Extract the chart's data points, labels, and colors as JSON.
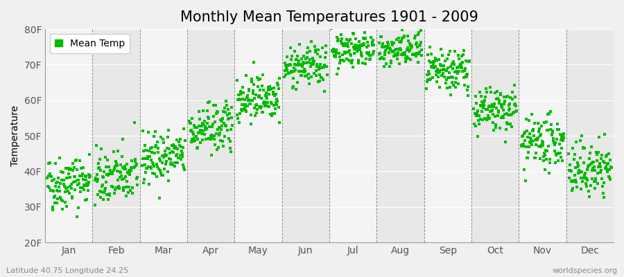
{
  "title": "Monthly Mean Temperatures 1901 - 2009",
  "ylabel": "Temperature",
  "bottom_left_text": "Latitude 40.75 Longitude 24.25",
  "bottom_right_text": "worldspecies.org",
  "legend_label": "Mean Temp",
  "months": [
    "Jan",
    "Feb",
    "Mar",
    "Apr",
    "May",
    "Jun",
    "Jul",
    "Aug",
    "Sep",
    "Oct",
    "Nov",
    "Dec"
  ],
  "month_means_F": [
    37.0,
    38.5,
    44.0,
    52.0,
    61.0,
    69.5,
    74.5,
    74.0,
    68.0,
    57.0,
    48.0,
    40.5
  ],
  "month_stds_F": [
    3.8,
    3.8,
    3.5,
    3.5,
    3.2,
    2.8,
    2.5,
    2.5,
    3.0,
    3.2,
    3.5,
    3.8
  ],
  "n_years": 109,
  "warming_trend_F_per_century": 1.5,
  "dot_color": "#00bb00",
  "dot_size": 5,
  "ylim": [
    20,
    80
  ],
  "yticks": [
    20,
    30,
    40,
    50,
    60,
    70,
    80
  ],
  "ytick_labels": [
    "20F",
    "30F",
    "40F",
    "50F",
    "60F",
    "70F",
    "80F"
  ],
  "bg_color": "#f0f0f0",
  "plot_bg_color": "#e8e8e8",
  "alt_band_color": "#f4f4f4",
  "grid_color": "#888888",
  "title_fontsize": 15,
  "axis_label_fontsize": 10,
  "tick_fontsize": 10,
  "annotation_fontsize": 8
}
